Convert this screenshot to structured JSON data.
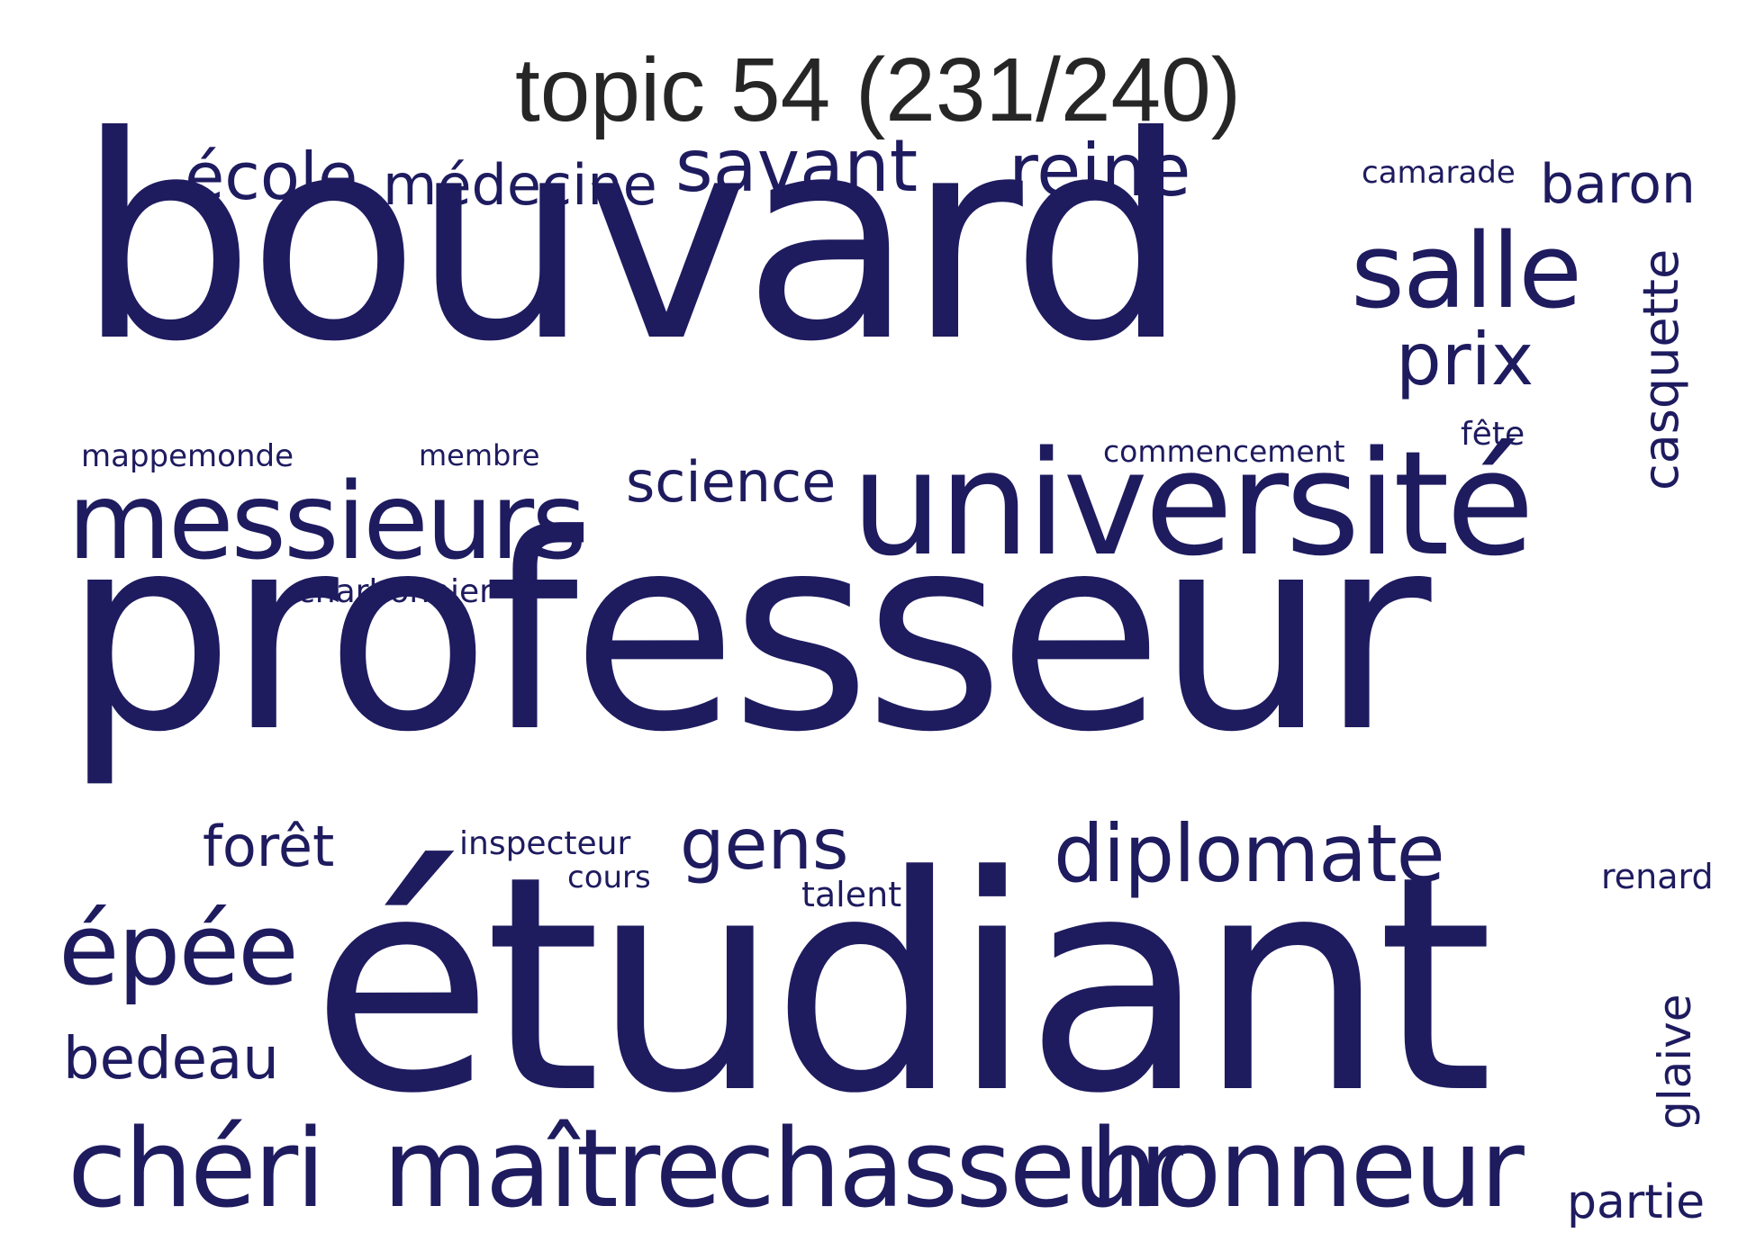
{
  "title": "topic 54 (231/240)",
  "word_color": "#1e1b5f",
  "words": [
    {
      "text": "bouvard"
    },
    {
      "text": "professeur"
    },
    {
      "text": "étudiant"
    },
    {
      "text": "université"
    },
    {
      "text": "messieurs"
    },
    {
      "text": "salle"
    },
    {
      "text": "chéri"
    },
    {
      "text": "maître"
    },
    {
      "text": "chasseur"
    },
    {
      "text": "honneur"
    },
    {
      "text": "épée"
    },
    {
      "text": "diplomate"
    },
    {
      "text": "savant"
    },
    {
      "text": "reine"
    },
    {
      "text": "prix"
    },
    {
      "text": "école"
    },
    {
      "text": "médecine"
    },
    {
      "text": "baron"
    },
    {
      "text": "science"
    },
    {
      "text": "gens"
    },
    {
      "text": "forêt"
    },
    {
      "text": "bedeau"
    },
    {
      "text": "casquette"
    },
    {
      "text": "glaive"
    },
    {
      "text": "partie"
    },
    {
      "text": "camarade"
    },
    {
      "text": "mappemonde"
    },
    {
      "text": "membre"
    },
    {
      "text": "commencement"
    },
    {
      "text": "fête"
    },
    {
      "text": "charbonnier"
    },
    {
      "text": "inspecteur"
    },
    {
      "text": "cours"
    },
    {
      "text": "talent"
    },
    {
      "text": "renard"
    }
  ]
}
